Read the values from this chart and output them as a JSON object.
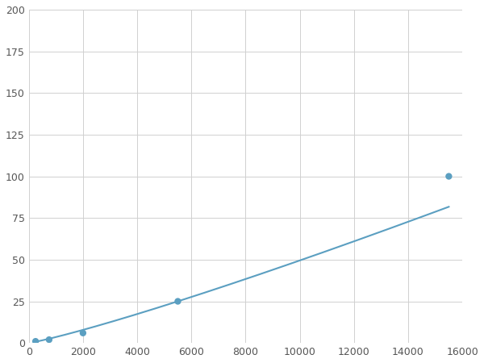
{
  "x": [
    250,
    750,
    2000,
    5500,
    15500
  ],
  "y": [
    1,
    2,
    6,
    25,
    100
  ],
  "line_color": "#5b9fc1",
  "marker_color": "#5b9fc1",
  "marker_size": 6,
  "xlim": [
    0,
    16000
  ],
  "ylim": [
    0,
    200
  ],
  "xticks": [
    0,
    2000,
    4000,
    6000,
    8000,
    10000,
    12000,
    14000,
    16000
  ],
  "yticks": [
    0,
    25,
    50,
    75,
    100,
    125,
    150,
    175,
    200
  ],
  "grid_color": "#d0d0d0",
  "background_color": "#ffffff",
  "linewidth": 1.5,
  "tick_labelsize": 9,
  "tick_color": "#555555"
}
